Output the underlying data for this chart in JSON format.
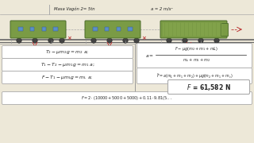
{
  "background_color": "#ede8d8",
  "title_text": "Masa Vagón 2= 5tn",
  "accel_text": "a = 2 m/s²",
  "eq1": "$T_2 - \\mu m_2 g = m_2\\ a;$",
  "eq2": "$T_1 - T_2 - \\mu m_1 g = m_1\\ a;$",
  "eq3": "$F - T_1 - \\mu m_L g = m_L\\ a;$",
  "eq4_lhs": "$a = $",
  "eq4_num": "$F - \\mu g(m_2 + m_1 + mL)$",
  "eq4_den": "$m_L + m_1 + m_2$",
  "eq5": "$\\bar{F} = a(m_L + m_1 + m_2) + \\mu g(m_2 + m_1 + m_c)$",
  "result": "$F$ = 61,582 N",
  "eq6": "$F = 2\\cdot(10000 + 5000 + 5000) + 0.11\\cdot 9.81(5...$",
  "wagon_color": "#7a9b45",
  "wagon_edge": "#4a6a2a",
  "window_color": "#5b8fca",
  "wheel_color": "#444444",
  "rail_color": "#666666",
  "box_bg": "#ffffff",
  "box_edge": "#aaaaaa",
  "text_color": "#222222",
  "arrow_color": "#bb3333",
  "divider_color": "#999999",
  "header_line_color": "#aaaaaa"
}
